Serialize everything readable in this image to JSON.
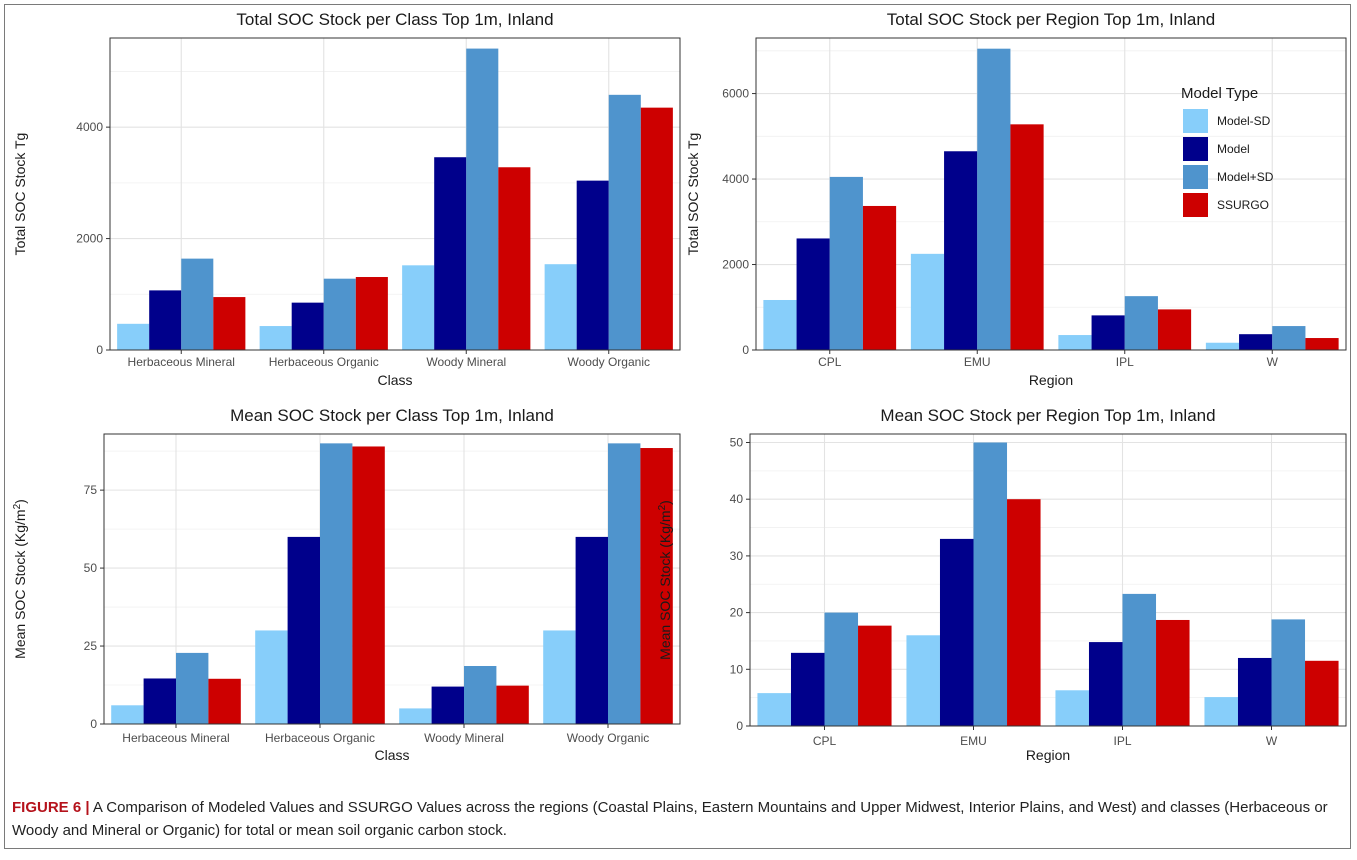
{
  "colors": {
    "Model-SD": "#87CEFA",
    "Model": "#00008B",
    "Model+SD": "#4F94CD",
    "SSURGO": "#CD0000"
  },
  "legend": {
    "title": "Model Type",
    "entries": [
      "Model-SD",
      "Model",
      "Model+SD",
      "SSURGO"
    ],
    "placement": "top-right (inside top-right panel)"
  },
  "caption": {
    "label": "FIGURE 6 |",
    "text": " A Comparison of Modeled Values and SSURGO Values across the regions (Coastal Plains, Eastern Mountains and Upper Midwest, Interior Plains, and West) and classes (Herbaceous or Woody and Mineral or Organic) for total or mean soil organic carbon stock."
  },
  "chart_data": [
    {
      "type": "bar",
      "title": "Total SOC Stock per Class Top 1m, Inland",
      "xlabel": "Class",
      "ylabel": "Total SOC Stock Tg",
      "ylim": [
        0,
        5600
      ],
      "yticks": [
        0,
        2000,
        4000
      ],
      "grid": true,
      "categories": [
        "Herbaceous Mineral",
        "Herbaceous Organic",
        "Woody Mineral",
        "Woody Organic"
      ],
      "series": [
        {
          "name": "Model-SD",
          "values": [
            470,
            430,
            1520,
            1540
          ]
        },
        {
          "name": "Model",
          "values": [
            1070,
            850,
            3460,
            3040
          ]
        },
        {
          "name": "Model+SD",
          "values": [
            1640,
            1280,
            5410,
            4580
          ]
        },
        {
          "name": "SSURGO",
          "values": [
            950,
            1310,
            3280,
            4350
          ]
        }
      ]
    },
    {
      "type": "bar",
      "title": "Total SOC Stock per Region Top 1m, Inland",
      "xlabel": "Region",
      "ylabel": "Total SOC Stock Tg",
      "ylim": [
        0,
        7300
      ],
      "yticks": [
        0,
        2000,
        4000,
        6000
      ],
      "grid": true,
      "categories": [
        "CPL",
        "EMU",
        "IPL",
        "W"
      ],
      "series": [
        {
          "name": "Model-SD",
          "values": [
            1170,
            2250,
            350,
            170
          ]
        },
        {
          "name": "Model",
          "values": [
            2610,
            4650,
            810,
            370
          ]
        },
        {
          "name": "Model+SD",
          "values": [
            4050,
            7050,
            1260,
            560
          ]
        },
        {
          "name": "SSURGO",
          "values": [
            3370,
            5280,
            950,
            280
          ]
        }
      ]
    },
    {
      "type": "bar",
      "title": "Mean SOC Stock per Class Top 1m, Inland",
      "xlabel": "Class",
      "ylabel": "Mean SOC Stock (Kg/m",
      "ylabel_sup": "2",
      "ylabel_end": ")",
      "ylim": [
        0,
        93
      ],
      "yticks": [
        0,
        25,
        50,
        75
      ],
      "grid": true,
      "categories": [
        "Herbaceous Mineral",
        "Herbaceous Organic",
        "Woody Mineral",
        "Woody Organic"
      ],
      "series": [
        {
          "name": "Model-SD",
          "values": [
            6,
            30,
            5,
            30
          ]
        },
        {
          "name": "Model",
          "values": [
            14.6,
            60,
            12,
            60
          ]
        },
        {
          "name": "Model+SD",
          "values": [
            22.8,
            90,
            18.6,
            90
          ]
        },
        {
          "name": "SSURGO",
          "values": [
            14.5,
            89,
            12.3,
            88.5
          ]
        }
      ]
    },
    {
      "type": "bar",
      "title": "Mean SOC Stock per Region Top 1m, Inland",
      "xlabel": "Region",
      "ylabel": "Mean SOC Stock (Kg/m",
      "ylabel_sup": "2",
      "ylabel_end": ")",
      "ylim": [
        0,
        51.5
      ],
      "yticks": [
        0,
        10,
        20,
        30,
        40,
        50
      ],
      "grid": true,
      "categories": [
        "CPL",
        "EMU",
        "IPL",
        "W"
      ],
      "series": [
        {
          "name": "Model-SD",
          "values": [
            5.8,
            16,
            6.3,
            5.1
          ]
        },
        {
          "name": "Model",
          "values": [
            12.9,
            33,
            14.8,
            12
          ]
        },
        {
          "name": "Model+SD",
          "values": [
            20,
            50,
            23.3,
            18.8
          ]
        },
        {
          "name": "SSURGO",
          "values": [
            17.7,
            40,
            18.7,
            11.5
          ]
        }
      ]
    }
  ]
}
